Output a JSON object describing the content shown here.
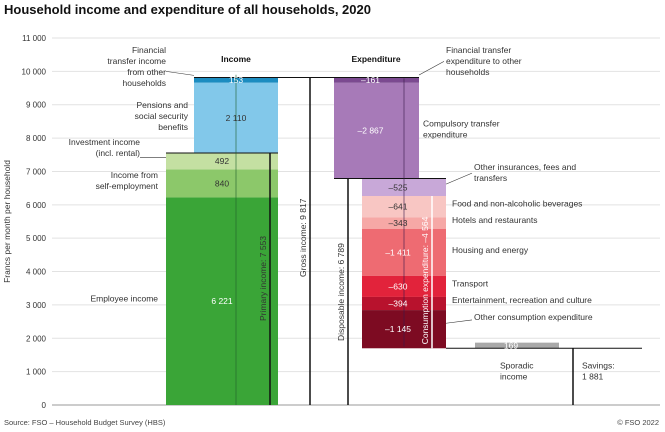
{
  "title": "Household income and expenditure of all households, 2020",
  "footer": {
    "source": "Source: FSO – Household Budget Survey (HBS)",
    "credit": "© FSO 2022"
  },
  "colors": {
    "employee": "#3aa537",
    "self_employment": "#8cc86a",
    "investment": "#c4e0a2",
    "pensions": "#82c8ea",
    "transfer_in": "#1c8cc0",
    "compulsory": "#a77ab8",
    "transfer_out": "#7b4a90",
    "other_insurances": "#c8a8d8",
    "food": "#f8c6c3",
    "hotels": "#f6a8a6",
    "housing": "#ee6b72",
    "transport": "#e2233b",
    "entertainment": "#b8122d",
    "other_consumption": "#7d0b22",
    "sporadic": "#a9a9a9"
  },
  "chart_data": {
    "type": "bar",
    "subtype": "waterfall",
    "ylabel": "Francs per month per household",
    "ylim": [
      0,
      11000
    ],
    "yticks": [
      0,
      1000,
      2000,
      3000,
      4000,
      5000,
      6000,
      7000,
      8000,
      9000,
      10000,
      11000
    ],
    "ytick_labels": [
      "0",
      "1 000",
      "2 000",
      "3 000",
      "4 000",
      "5 000",
      "6 000",
      "7 000",
      "8 000",
      "9 000",
      "10 000",
      "11 000"
    ],
    "grid": true,
    "headers": {
      "income": "Income",
      "expenditure": "Expenditure"
    },
    "income_components": [
      {
        "key": "employee",
        "label": "Employee income",
        "value": 6221,
        "value_label": "6 221"
      },
      {
        "key": "self_employment",
        "label": "Income from self-employment",
        "value": 840,
        "value_label": "840"
      },
      {
        "key": "investment",
        "label": "Investment income (incl. rental)",
        "value": 492,
        "value_label": "492"
      },
      {
        "key": "pensions",
        "label": "Pensions and social security benefits",
        "value": 2110,
        "value_label": "2 110"
      },
      {
        "key": "transfer_in",
        "label": "Financial transfer income from other households",
        "value": 153,
        "value_label": "153"
      }
    ],
    "expenditure_components": [
      {
        "key": "transfer_out",
        "label": "Financial transfer expenditure to other households",
        "value": -161,
        "value_label": "–161"
      },
      {
        "key": "compulsory",
        "label": "Compulsory transfer expenditure",
        "value": -2867,
        "value_label": "–2 867"
      },
      {
        "key": "other_insurances",
        "label": "Other insurances, fees and transfers",
        "value": -525,
        "value_label": "–525"
      },
      {
        "key": "food",
        "label": "Food and non-alcoholic beverages",
        "value": -641,
        "value_label": "–641"
      },
      {
        "key": "hotels",
        "label": "Hotels and restaurants",
        "value": -343,
        "value_label": "–343"
      },
      {
        "key": "housing",
        "label": "Housing and energy",
        "value": -1411,
        "value_label": "–1 411"
      },
      {
        "key": "transport",
        "label": "Transport",
        "value": -630,
        "value_label": "–630"
      },
      {
        "key": "entertainment",
        "label": "Entertainment, recreation and culture",
        "value": -394,
        "value_label": "–394"
      },
      {
        "key": "other_consumption",
        "label": "Other consumption expenditure",
        "value": -1145,
        "value_label": "–1 145"
      },
      {
        "key": "sporadic",
        "label": "Sporadic income",
        "value": 169,
        "value_label": "169"
      }
    ],
    "totals": [
      {
        "key": "primary",
        "label": "Primary income: 7 553",
        "value": 7553
      },
      {
        "key": "gross",
        "label": "Gross income: 9 817",
        "value": 9817
      },
      {
        "key": "disposable",
        "label": "Disposable income: 6 789",
        "value": 6789
      },
      {
        "key": "consumption",
        "label": "Consumption expenditure: –4 564",
        "value": -4564
      },
      {
        "key": "savings",
        "label": "Savings: 1 881",
        "value": 1881
      }
    ]
  }
}
